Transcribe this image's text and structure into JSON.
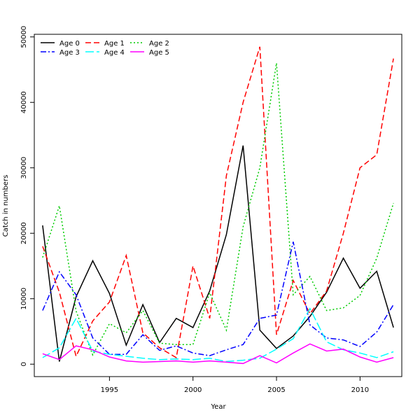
{
  "chart_data": {
    "type": "line",
    "xlabel": "Year",
    "ylabel": "Catch in numbers",
    "xlim": [
      1990.5,
      2012.5
    ],
    "ylim": [
      -1900,
      50400
    ],
    "xticks": [
      1995,
      2000,
      2005,
      2010
    ],
    "yticks": [
      0,
      10000,
      20000,
      30000,
      40000,
      50000
    ],
    "legend_position": "top-left",
    "x": [
      1991,
      1992,
      1993,
      1994,
      1995,
      1996,
      1997,
      1998,
      1999,
      2000,
      2001,
      2002,
      2003,
      2004,
      2005,
      2006,
      2007,
      2008,
      2009,
      2010,
      2011,
      2012
    ],
    "series": [
      {
        "name": "Age 0",
        "color": "#000000",
        "dash": "solid",
        "values": [
          21200,
          400,
          10300,
          15800,
          10800,
          2900,
          9100,
          3300,
          7000,
          5600,
          11200,
          19800,
          33400,
          5200,
          2400,
          4300,
          7300,
          11000,
          16200,
          11600,
          14200,
          5600
        ]
      },
      {
        "name": "Age 1",
        "color": "#ff0000",
        "dash": "dashed",
        "values": [
          18000,
          11000,
          1200,
          6600,
          9500,
          16600,
          4800,
          2500,
          1000,
          15000,
          7000,
          28800,
          40000,
          48500,
          4500,
          12800,
          7700,
          11200,
          20000,
          30000,
          32000,
          46700
        ]
      },
      {
        "name": "Age 2",
        "color": "#00cc00",
        "dash": "dotted",
        "values": [
          16300,
          24200,
          8100,
          1400,
          6200,
          4800,
          8200,
          3200,
          3000,
          3000,
          10900,
          5200,
          21000,
          30000,
          46000,
          10600,
          13400,
          8200,
          8600,
          10500,
          16200,
          24600
        ]
      },
      {
        "name": "Age 3",
        "color": "#0000ff",
        "dash": "dotdash",
        "values": [
          8200,
          14100,
          10600,
          4000,
          1500,
          1500,
          4500,
          2100,
          2800,
          1700,
          1300,
          2200,
          3000,
          7000,
          7500,
          18700,
          6000,
          4000,
          3700,
          2700,
          4900,
          9100
        ]
      },
      {
        "name": "Age 4",
        "color": "#00ffff",
        "dash": "longdash",
        "values": [
          1000,
          2500,
          7000,
          2000,
          1500,
          1200,
          900,
          700,
          800,
          700,
          900,
          400,
          600,
          900,
          2300,
          3900,
          8500,
          3400,
          2200,
          1700,
          1000,
          1900
        ]
      },
      {
        "name": "Age 5",
        "color": "#ff00ff",
        "dash": "solid",
        "values": [
          1600,
          700,
          2800,
          2200,
          1100,
          500,
          300,
          400,
          500,
          300,
          500,
          300,
          100,
          1300,
          200,
          1700,
          3100,
          2000,
          2300,
          1100,
          300,
          1000
        ]
      }
    ]
  }
}
